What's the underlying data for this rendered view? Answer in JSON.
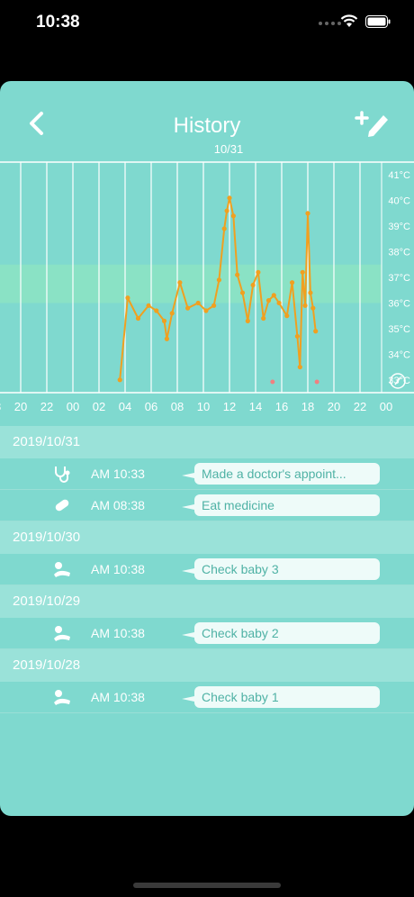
{
  "status_bar": {
    "time": "10:38"
  },
  "nav": {
    "title": "History",
    "subtitle": "10/31"
  },
  "colors": {
    "background": "#7fd9cf",
    "series": "#f0a020",
    "band": "#8ee6c0",
    "marker": "#f08080"
  },
  "icons": {
    "back": "chevron-left-icon",
    "edit": "pencil-plus-icon"
  },
  "chart_data": {
    "type": "line",
    "y_ticks": [
      "41°C",
      "40°C",
      "39°C",
      "38°C",
      "37°C",
      "36°C",
      "35°C",
      "34°C",
      "33°C"
    ],
    "x_ticks": [
      "18",
      "20",
      "22",
      "00",
      "02",
      "04",
      "06",
      "08",
      "10",
      "12",
      "14",
      "16",
      "18",
      "20",
      "22",
      "00"
    ],
    "ylim": [
      32.5,
      41.5
    ],
    "normal_band": [
      36.0,
      37.5
    ],
    "series": [
      {
        "values": [
          [
            1.8,
            33.0
          ],
          [
            2.1,
            36.2
          ],
          [
            2.5,
            35.4
          ],
          [
            2.9,
            35.9
          ],
          [
            3.2,
            35.7
          ],
          [
            3.5,
            35.3
          ],
          [
            3.6,
            34.6
          ],
          [
            3.8,
            35.6
          ],
          [
            4.1,
            36.8
          ],
          [
            4.4,
            35.8
          ],
          [
            4.8,
            36.0
          ],
          [
            5.1,
            35.7
          ],
          [
            5.4,
            35.9
          ],
          [
            5.6,
            36.9
          ],
          [
            5.8,
            38.9
          ],
          [
            5.9,
            39.6
          ],
          [
            6.0,
            40.1
          ],
          [
            6.15,
            39.4
          ],
          [
            6.3,
            37.1
          ],
          [
            6.5,
            36.4
          ],
          [
            6.7,
            35.3
          ],
          [
            6.9,
            36.7
          ],
          [
            7.1,
            37.2
          ],
          [
            7.3,
            35.4
          ],
          [
            7.5,
            36.1
          ],
          [
            7.7,
            36.3
          ],
          [
            7.9,
            36.0
          ],
          [
            8.2,
            35.5
          ],
          [
            8.4,
            36.8
          ],
          [
            8.6,
            34.7
          ],
          [
            8.7,
            33.5
          ],
          [
            8.8,
            37.2
          ],
          [
            8.9,
            35.9
          ],
          [
            9.0,
            39.5
          ],
          [
            9.1,
            36.4
          ],
          [
            9.2,
            35.8
          ],
          [
            9.3,
            34.9
          ]
        ]
      }
    ],
    "markers_x": [
      7.65,
      9.35
    ]
  },
  "history": [
    {
      "date": "2019/10/31",
      "entries": [
        {
          "icon": "stethoscope-icon",
          "time": "AM 10:33",
          "note": "Made a doctor's appoint..."
        },
        {
          "icon": "pill-icon",
          "time": "AM 08:38",
          "note": "Eat medicine"
        }
      ]
    },
    {
      "date": "2019/10/30",
      "entries": [
        {
          "icon": "baby-icon",
          "time": "AM 10:38",
          "note": "Check baby 3"
        }
      ]
    },
    {
      "date": "2019/10/29",
      "entries": [
        {
          "icon": "baby-icon",
          "time": "AM 10:38",
          "note": "Check baby 2"
        }
      ]
    },
    {
      "date": "2019/10/28",
      "entries": [
        {
          "icon": "baby-icon",
          "time": "AM 10:38",
          "note": "Check baby 1"
        }
      ]
    }
  ]
}
